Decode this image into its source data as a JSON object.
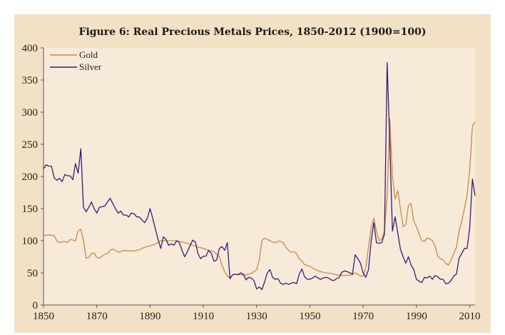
{
  "chart_data": {
    "type": "line",
    "title": "Figure 6: Real Precious Metals Prices, 1850-2012 (1900=100)",
    "xlabel": "",
    "ylabel": "",
    "xlim": [
      1850,
      2012
    ],
    "ylim": [
      0,
      400
    ],
    "x_ticks": [
      1850,
      1870,
      1890,
      1910,
      1930,
      1950,
      1970,
      1990,
      2010
    ],
    "y_ticks": [
      0,
      50,
      100,
      150,
      200,
      250,
      300,
      350,
      400
    ],
    "grid": false,
    "legend_position": "top-left",
    "colors": {
      "plot_background": "#f7ead8",
      "frame_background": "#f3e1c6",
      "gold": "#c8894a",
      "silver": "#3b1a78"
    },
    "series": [
      {
        "name": "Gold",
        "color": "#c8894a",
        "points": [
          [
            1850,
            108
          ],
          [
            1852,
            109
          ],
          [
            1854,
            108
          ],
          [
            1855,
            100
          ],
          [
            1856,
            97
          ],
          [
            1857,
            98
          ],
          [
            1858,
            99
          ],
          [
            1859,
            97
          ],
          [
            1860,
            102
          ],
          [
            1861,
            101
          ],
          [
            1862,
            100
          ],
          [
            1863,
            115
          ],
          [
            1864,
            118
          ],
          [
            1865,
            100
          ],
          [
            1866,
            73
          ],
          [
            1867,
            74
          ],
          [
            1868,
            80
          ],
          [
            1869,
            81
          ],
          [
            1870,
            74
          ],
          [
            1871,
            73
          ],
          [
            1872,
            76
          ],
          [
            1873,
            79
          ],
          [
            1874,
            80
          ],
          [
            1875,
            85
          ],
          [
            1876,
            87
          ],
          [
            1877,
            85
          ],
          [
            1878,
            82
          ],
          [
            1879,
            83
          ],
          [
            1880,
            85
          ],
          [
            1882,
            84
          ],
          [
            1884,
            84
          ],
          [
            1886,
            86
          ],
          [
            1888,
            90
          ],
          [
            1890,
            92
          ],
          [
            1892,
            95
          ],
          [
            1894,
            100
          ],
          [
            1896,
            100
          ],
          [
            1898,
            100
          ],
          [
            1900,
            100
          ],
          [
            1902,
            98
          ],
          [
            1904,
            96
          ],
          [
            1906,
            93
          ],
          [
            1908,
            90
          ],
          [
            1910,
            88
          ],
          [
            1912,
            85
          ],
          [
            1914,
            83
          ],
          [
            1916,
            75
          ],
          [
            1917,
            62
          ],
          [
            1918,
            52
          ],
          [
            1919,
            45
          ],
          [
            1920,
            42
          ],
          [
            1921,
            47
          ],
          [
            1922,
            48
          ],
          [
            1924,
            47
          ],
          [
            1926,
            47
          ],
          [
            1928,
            49
          ],
          [
            1930,
            55
          ],
          [
            1931,
            70
          ],
          [
            1932,
            100
          ],
          [
            1933,
            104
          ],
          [
            1934,
            102
          ],
          [
            1935,
            100
          ],
          [
            1936,
            98
          ],
          [
            1937,
            97
          ],
          [
            1938,
            99
          ],
          [
            1939,
            99
          ],
          [
            1940,
            97
          ],
          [
            1941,
            90
          ],
          [
            1942,
            85
          ],
          [
            1943,
            82
          ],
          [
            1944,
            83
          ],
          [
            1945,
            80
          ],
          [
            1946,
            72
          ],
          [
            1947,
            68
          ],
          [
            1948,
            63
          ],
          [
            1950,
            60
          ],
          [
            1952,
            55
          ],
          [
            1954,
            52
          ],
          [
            1956,
            50
          ],
          [
            1958,
            49
          ],
          [
            1960,
            47
          ],
          [
            1962,
            46
          ],
          [
            1964,
            46
          ],
          [
            1966,
            47
          ],
          [
            1967,
            50
          ],
          [
            1968,
            48
          ],
          [
            1969,
            45
          ],
          [
            1970,
            45
          ],
          [
            1971,
            58
          ],
          [
            1972,
            90
          ],
          [
            1973,
            120
          ],
          [
            1974,
            135
          ],
          [
            1975,
            115
          ],
          [
            1976,
            100
          ],
          [
            1977,
            103
          ],
          [
            1978,
            115
          ],
          [
            1979,
            170
          ],
          [
            1980,
            290
          ],
          [
            1981,
            200
          ],
          [
            1982,
            165
          ],
          [
            1983,
            178
          ],
          [
            1984,
            150
          ],
          [
            1985,
            122
          ],
          [
            1986,
            125
          ],
          [
            1987,
            155
          ],
          [
            1988,
            158
          ],
          [
            1989,
            130
          ],
          [
            1990,
            122
          ],
          [
            1991,
            110
          ],
          [
            1992,
            100
          ],
          [
            1993,
            99
          ],
          [
            1994,
            104
          ],
          [
            1995,
            103
          ],
          [
            1996,
            100
          ],
          [
            1997,
            92
          ],
          [
            1998,
            76
          ],
          [
            1999,
            72
          ],
          [
            2000,
            70
          ],
          [
            2001,
            65
          ],
          [
            2002,
            62
          ],
          [
            2003,
            70
          ],
          [
            2004,
            80
          ],
          [
            2005,
            90
          ],
          [
            2006,
            115
          ],
          [
            2007,
            130
          ],
          [
            2008,
            150
          ],
          [
            2009,
            170
          ],
          [
            2010,
            210
          ],
          [
            2011,
            278
          ],
          [
            2012,
            285
          ]
        ]
      },
      {
        "name": "Silver",
        "color": "#3b1a78",
        "points": [
          [
            1850,
            212
          ],
          [
            1851,
            218
          ],
          [
            1852,
            216
          ],
          [
            1853,
            216
          ],
          [
            1854,
            198
          ],
          [
            1855,
            194
          ],
          [
            1856,
            197
          ],
          [
            1857,
            192
          ],
          [
            1858,
            203
          ],
          [
            1859,
            201
          ],
          [
            1860,
            201
          ],
          [
            1861,
            195
          ],
          [
            1862,
            220
          ],
          [
            1863,
            205
          ],
          [
            1864,
            243
          ],
          [
            1865,
            152
          ],
          [
            1866,
            145
          ],
          [
            1867,
            152
          ],
          [
            1868,
            160
          ],
          [
            1869,
            150
          ],
          [
            1870,
            143
          ],
          [
            1871,
            152
          ],
          [
            1872,
            153
          ],
          [
            1873,
            154
          ],
          [
            1874,
            160
          ],
          [
            1875,
            166
          ],
          [
            1876,
            158
          ],
          [
            1877,
            150
          ],
          [
            1878,
            143
          ],
          [
            1879,
            146
          ],
          [
            1880,
            140
          ],
          [
            1881,
            140
          ],
          [
            1882,
            137
          ],
          [
            1883,
            143
          ],
          [
            1884,
            142
          ],
          [
            1885,
            137
          ],
          [
            1886,
            137
          ],
          [
            1887,
            132
          ],
          [
            1888,
            128
          ],
          [
            1889,
            135
          ],
          [
            1890,
            150
          ],
          [
            1891,
            135
          ],
          [
            1892,
            118
          ],
          [
            1893,
            102
          ],
          [
            1894,
            88
          ],
          [
            1895,
            106
          ],
          [
            1896,
            102
          ],
          [
            1897,
            93
          ],
          [
            1898,
            95
          ],
          [
            1899,
            93
          ],
          [
            1900,
            100
          ],
          [
            1901,
            97
          ],
          [
            1902,
            85
          ],
          [
            1903,
            75
          ],
          [
            1904,
            83
          ],
          [
            1905,
            92
          ],
          [
            1906,
            101
          ],
          [
            1907,
            98
          ],
          [
            1908,
            80
          ],
          [
            1909,
            72
          ],
          [
            1910,
            76
          ],
          [
            1911,
            76
          ],
          [
            1912,
            85
          ],
          [
            1913,
            80
          ],
          [
            1914,
            68
          ],
          [
            1915,
            70
          ],
          [
            1916,
            88
          ],
          [
            1917,
            91
          ],
          [
            1918,
            85
          ],
          [
            1919,
            97
          ],
          [
            1920,
            41
          ],
          [
            1921,
            47
          ],
          [
            1922,
            48
          ],
          [
            1923,
            47
          ],
          [
            1924,
            50
          ],
          [
            1925,
            48
          ],
          [
            1926,
            39
          ],
          [
            1927,
            43
          ],
          [
            1928,
            42
          ],
          [
            1929,
            38
          ],
          [
            1930,
            25
          ],
          [
            1931,
            28
          ],
          [
            1932,
            24
          ],
          [
            1933,
            36
          ],
          [
            1934,
            50
          ],
          [
            1935,
            55
          ],
          [
            1936,
            43
          ],
          [
            1937,
            40
          ],
          [
            1938,
            41
          ],
          [
            1939,
            34
          ],
          [
            1940,
            32
          ],
          [
            1941,
            34
          ],
          [
            1942,
            32
          ],
          [
            1943,
            34
          ],
          [
            1944,
            35
          ],
          [
            1945,
            33
          ],
          [
            1946,
            48
          ],
          [
            1947,
            56
          ],
          [
            1948,
            44
          ],
          [
            1949,
            40
          ],
          [
            1950,
            40
          ],
          [
            1951,
            42
          ],
          [
            1952,
            45
          ],
          [
            1953,
            42
          ],
          [
            1954,
            40
          ],
          [
            1955,
            42
          ],
          [
            1956,
            43
          ],
          [
            1957,
            42
          ],
          [
            1958,
            39
          ],
          [
            1959,
            38
          ],
          [
            1960,
            41
          ],
          [
            1961,
            43
          ],
          [
            1962,
            51
          ],
          [
            1963,
            53
          ],
          [
            1964,
            52
          ],
          [
            1965,
            50
          ],
          [
            1966,
            48
          ],
          [
            1967,
            78
          ],
          [
            1968,
            72
          ],
          [
            1969,
            65
          ],
          [
            1970,
            50
          ],
          [
            1971,
            43
          ],
          [
            1972,
            55
          ],
          [
            1973,
            100
          ],
          [
            1974,
            128
          ],
          [
            1975,
            97
          ],
          [
            1976,
            96
          ],
          [
            1977,
            97
          ],
          [
            1978,
            110
          ],
          [
            1979,
            377
          ],
          [
            1980,
            250
          ],
          [
            1981,
            115
          ],
          [
            1982,
            137
          ],
          [
            1983,
            112
          ],
          [
            1984,
            87
          ],
          [
            1985,
            75
          ],
          [
            1986,
            65
          ],
          [
            1987,
            75
          ],
          [
            1988,
            62
          ],
          [
            1989,
            55
          ],
          [
            1990,
            40
          ],
          [
            1991,
            37
          ],
          [
            1992,
            35
          ],
          [
            1993,
            43
          ],
          [
            1994,
            42
          ],
          [
            1995,
            45
          ],
          [
            1996,
            40
          ],
          [
            1997,
            46
          ],
          [
            1998,
            44
          ],
          [
            1999,
            40
          ],
          [
            2000,
            40
          ],
          [
            2001,
            33
          ],
          [
            2002,
            34
          ],
          [
            2003,
            38
          ],
          [
            2004,
            45
          ],
          [
            2005,
            48
          ],
          [
            2006,
            73
          ],
          [
            2007,
            80
          ],
          [
            2008,
            88
          ],
          [
            2009,
            88
          ],
          [
            2010,
            120
          ],
          [
            2011,
            196
          ],
          [
            2012,
            170
          ]
        ]
      }
    ]
  }
}
